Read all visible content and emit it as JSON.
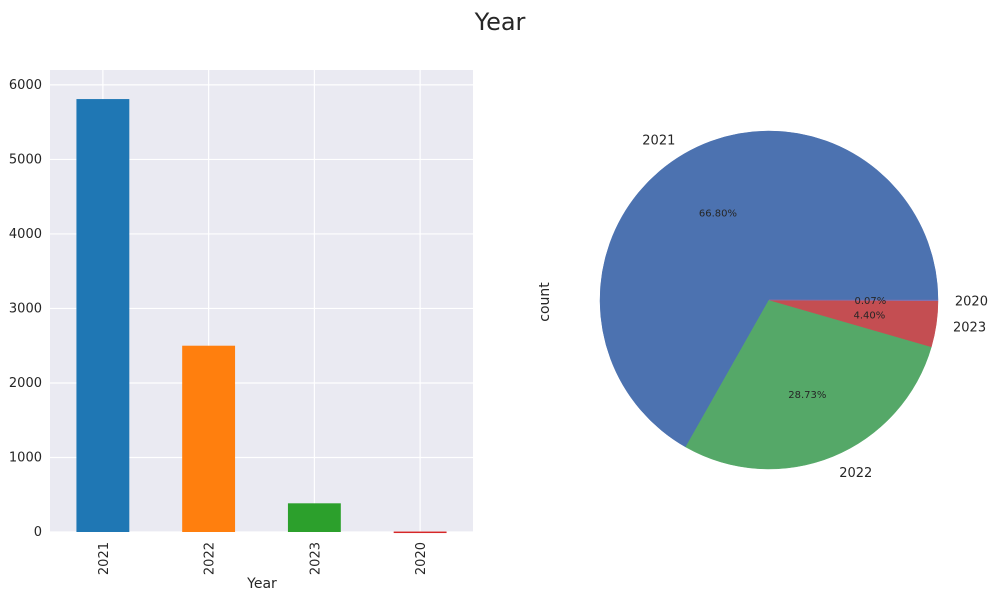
{
  "suptitle": "Year",
  "chart_data": [
    {
      "type": "bar",
      "title": "",
      "xlabel": "Year",
      "ylabel": "",
      "categories": [
        "2021",
        "2022",
        "2023",
        "2020"
      ],
      "values": [
        5810,
        2500,
        385,
        6
      ],
      "colors": [
        "#1f77b4",
        "#ff7f0e",
        "#2ca02c",
        "#d62728"
      ],
      "ylim": [
        0,
        6200
      ],
      "yticks": [
        0,
        1000,
        2000,
        3000,
        4000,
        5000,
        6000
      ],
      "grid": true
    },
    {
      "type": "pie",
      "title": "",
      "ylabel": "count",
      "labels": [
        "2021",
        "2022",
        "2023",
        "2020"
      ],
      "values": [
        66.8,
        28.73,
        4.4,
        0.07
      ],
      "pct_labels": [
        "66.80%",
        "28.73%",
        "4.40%",
        "0.07%"
      ],
      "colors": [
        "#4c72b0",
        "#55a868",
        "#c44e52",
        "#8172b2"
      ]
    }
  ]
}
